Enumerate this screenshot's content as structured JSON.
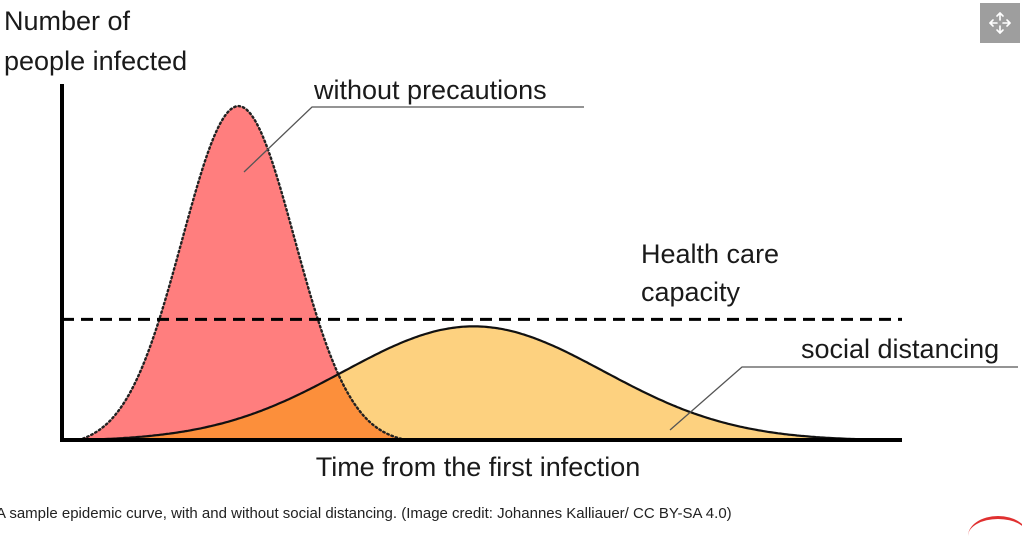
{
  "chart_data": {
    "type": "area",
    "title": "",
    "ylabel": "Number of people infected",
    "ylabel_lines": [
      "Number of",
      "people infected"
    ],
    "xlabel": "Time from the first infection",
    "xlim": [
      0,
      100
    ],
    "ylim": [
      0,
      100
    ],
    "grid": false,
    "series": [
      {
        "name": "without precautions",
        "shape": "bell",
        "peak_x": 21,
        "peak_y": 100,
        "spread": 6.7,
        "start_x": 2,
        "end_x": 41,
        "fill": "#ff7e7e",
        "outline": "dotted"
      },
      {
        "name": "social distancing",
        "shape": "bell",
        "peak_x": 49,
        "peak_y": 34,
        "spread": 15.5,
        "start_x": 2,
        "end_x": 99,
        "fill": "#fdd17f",
        "outline": "solid"
      }
    ],
    "overlap_fill": "#fc8f3b",
    "threshold": {
      "name": "Health care capacity",
      "lines": [
        "Health care",
        "capacity"
      ],
      "y": 36,
      "style": "dashed"
    },
    "annotations": [
      {
        "text": "without precautions",
        "series": "without precautions"
      },
      {
        "text": "social distancing",
        "series": "social distancing"
      }
    ]
  },
  "caption": "A sample epidemic curve, with and without social distancing. (Image credit: Johannes Kalliauer/ CC BY-SA 4.0)",
  "controls": {
    "expand_icon": "expand-arrows-icon"
  },
  "colors": {
    "axis": "#000000",
    "leader": "#555555"
  }
}
